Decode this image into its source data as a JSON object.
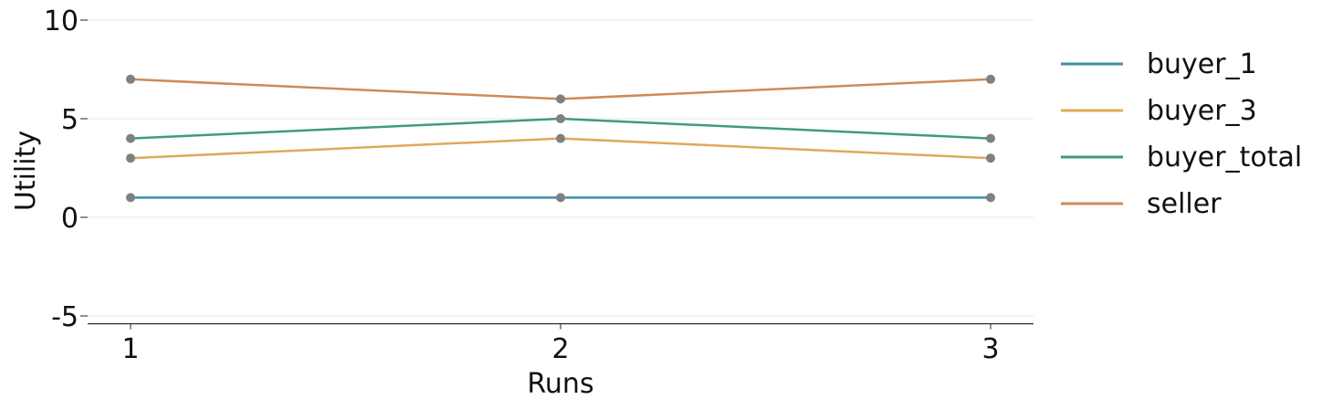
{
  "chart_data": {
    "type": "line",
    "title": "",
    "xlabel": "Runs",
    "ylabel": "Utility",
    "x": [
      1,
      2,
      3
    ],
    "x_tick_labels": [
      "1",
      "2",
      "3"
    ],
    "ylim": [
      -5.4,
      10
    ],
    "y_ticks": [
      10,
      5,
      0,
      -5
    ],
    "y_tick_labels": [
      "10",
      "5",
      "0",
      "-5"
    ],
    "grid": "horizontal",
    "legend_position": "right",
    "marker_color": "#808080",
    "series": [
      {
        "name": "buyer_1",
        "color": "#3f8fa6",
        "values": [
          1,
          1,
          1
        ]
      },
      {
        "name": "buyer_3",
        "color": "#dfa95a",
        "values": [
          3,
          4,
          3
        ]
      },
      {
        "name": "buyer_total",
        "color": "#3f9b7c",
        "values": [
          4,
          5,
          4
        ]
      },
      {
        "name": "seller",
        "color": "#cf8a57",
        "values": [
          7,
          6,
          7
        ]
      }
    ]
  }
}
